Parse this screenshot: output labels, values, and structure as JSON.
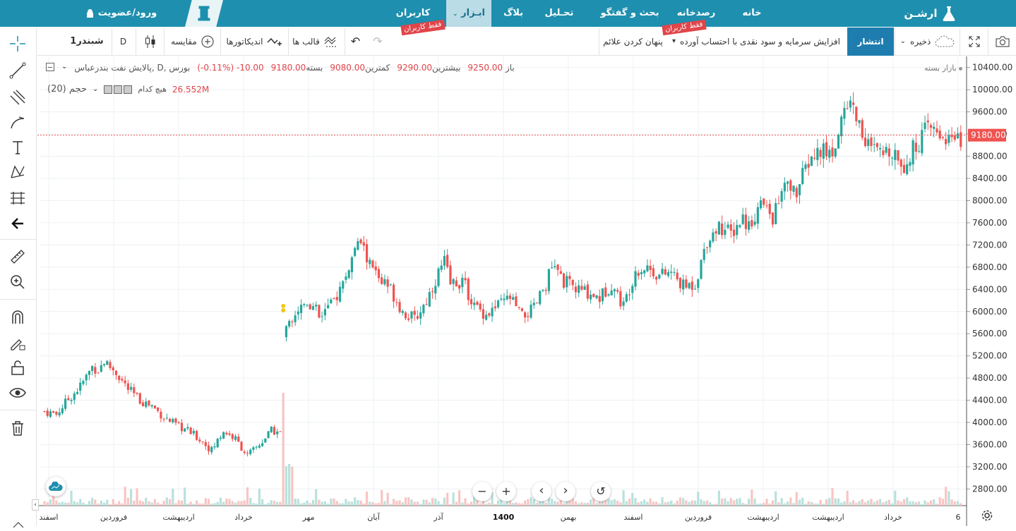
{
  "nav": {
    "brand": "ارشـن",
    "home": "خانه",
    "observatory": "رصدخانه",
    "discussion": "بحث و گفتگو",
    "analysis": "تحـلیل",
    "blog": "بلاگ",
    "tools": "ابـزار",
    "users": "کاربران",
    "users_tag": "فقط کاربران",
    "tools_tag": "فقط کاربران",
    "login": "ورود/عضویت"
  },
  "toolbar": {
    "symbol": "شبندر1",
    "interval": "D",
    "compare": "مقایسه",
    "indicators": "اندیکاتورها",
    "templates": "قالب ها",
    "hide_signals": "پنهان کردن علائم",
    "adjust": "افزایش سرمایه و سود نقدی با احتساب آورده",
    "publish": "انتشار",
    "save": "ذخیره"
  },
  "legend": {
    "title": "پالایش نفت بندرعباس, D, بورس",
    "open_label": "باز",
    "open": "9250.00",
    "high_label": "بیشترین",
    "high": "9290.00",
    "low_label": "کمترین",
    "low": "9080.00",
    "close_label": "بسته",
    "close": "9180.00",
    "change": "-10.00",
    "change_pct": "(-0.11%)",
    "market_closed": "بازار بسته",
    "volume_label": "حجم (20)",
    "volume_none": "هیچ کدام",
    "volume_value": "26.552M"
  },
  "colors": {
    "nav": "#1e8fae",
    "up": "#26a69a",
    "down": "#ef5350",
    "price_tag": "#ef5350"
  },
  "icons": [
    "crosshair-icon",
    "trend-line-icon",
    "fib-icon",
    "brush-icon",
    "text-icon",
    "pattern-icon",
    "prediction-icon",
    "back-arrow-icon",
    "ruler-icon",
    "zoom-in-icon",
    "magnet-icon",
    "lock-draw-icon",
    "lock-icon",
    "eye-icon",
    "trash-icon"
  ],
  "controls": {
    "zoom_out": "−",
    "zoom_in": "+",
    "scroll_left": "‹",
    "scroll_right": "›",
    "reset": "↺"
  },
  "chart_data": {
    "type": "candlestick",
    "title": "پالایش نفت بندرعباس, D, بورس",
    "ylim": [
      2500,
      10600
    ],
    "y_ticks": [
      2800,
      3200,
      3600,
      4000,
      4400,
      4800,
      5200,
      5600,
      6000,
      6400,
      6800,
      7200,
      7600,
      8000,
      8400,
      8800,
      9200,
      9600,
      10000,
      10400
    ],
    "y_tick_labels": [
      "2800.00",
      "3200.00",
      "3600.00",
      "4000.00",
      "4400.00",
      "4800.00",
      "5200.00",
      "5600.00",
      "6000.00",
      "6400.00",
      "6800.00",
      "7200.00",
      "7600.00",
      "8000.00",
      "8400.00",
      "8800.00",
      "9200.00",
      "9600.00",
      "10000.00",
      "10400.00"
    ],
    "last_price": 9180,
    "last_price_label": "9180.00",
    "x_labels": [
      "اسفند",
      "فروردین",
      "اردیبهشت",
      "خرداد",
      "مهر",
      "آبان",
      "آذر",
      "1400",
      "بهمن",
      "اسفند",
      "فروردین",
      "اردیبهشت",
      "اردیبهشت",
      "خرداد",
      "6"
    ],
    "close_path": [
      [
        0,
        4200
      ],
      [
        4,
        4150
      ],
      [
        8,
        4420
      ],
      [
        12,
        4650
      ],
      [
        16,
        5000
      ],
      [
        18,
        4950
      ],
      [
        20,
        5100
      ],
      [
        24,
        4900
      ],
      [
        28,
        4600
      ],
      [
        32,
        4400
      ],
      [
        36,
        4300
      ],
      [
        40,
        4100
      ],
      [
        44,
        3950
      ],
      [
        48,
        3850
      ],
      [
        52,
        3700
      ],
      [
        56,
        3500
      ],
      [
        60,
        3850
      ],
      [
        64,
        3700
      ],
      [
        68,
        3400
      ],
      [
        72,
        3600
      ],
      [
        76,
        3850
      ],
      [
        80,
        3800
      ],
      [
        81,
        5800
      ],
      [
        84,
        6000
      ],
      [
        88,
        6200
      ],
      [
        92,
        5950
      ],
      [
        96,
        6100
      ],
      [
        100,
        6500
      ],
      [
        104,
        7100
      ],
      [
        106,
        7250
      ],
      [
        108,
        6950
      ],
      [
        112,
        6600
      ],
      [
        116,
        6400
      ],
      [
        120,
        6000
      ],
      [
        124,
        5850
      ],
      [
        128,
        6200
      ],
      [
        132,
        6700
      ],
      [
        134,
        6900
      ],
      [
        136,
        6500
      ],
      [
        140,
        6550
      ],
      [
        144,
        6100
      ],
      [
        148,
        5950
      ],
      [
        152,
        6100
      ],
      [
        156,
        6250
      ],
      [
        160,
        5900
      ],
      [
        164,
        6050
      ],
      [
        168,
        6500
      ],
      [
        170,
        6800
      ],
      [
        174,
        6550
      ],
      [
        178,
        6400
      ],
      [
        182,
        6350
      ],
      [
        186,
        6250
      ],
      [
        190,
        6500
      ],
      [
        194,
        6100
      ],
      [
        198,
        6750
      ],
      [
        202,
        6800
      ],
      [
        206,
        6650
      ],
      [
        210,
        6700
      ],
      [
        214,
        6450
      ],
      [
        218,
        6500
      ],
      [
        222,
        7300
      ],
      [
        226,
        7550
      ],
      [
        230,
        7400
      ],
      [
        234,
        7700
      ],
      [
        236,
        7550
      ],
      [
        240,
        7950
      ],
      [
        244,
        7700
      ],
      [
        248,
        8250
      ],
      [
        252,
        8150
      ],
      [
        256,
        8700
      ],
      [
        260,
        8900
      ],
      [
        264,
        8850
      ],
      [
        268,
        9650
      ],
      [
        270,
        9800
      ],
      [
        272,
        9500
      ],
      [
        276,
        9000
      ],
      [
        280,
        8800
      ],
      [
        284,
        8950
      ],
      [
        288,
        8650
      ],
      [
        292,
        9000
      ],
      [
        296,
        9300
      ],
      [
        300,
        9200
      ],
      [
        304,
        9100
      ],
      [
        306,
        9050
      ],
      [
        308,
        9180
      ]
    ],
    "volume_spike_index": 80
  }
}
